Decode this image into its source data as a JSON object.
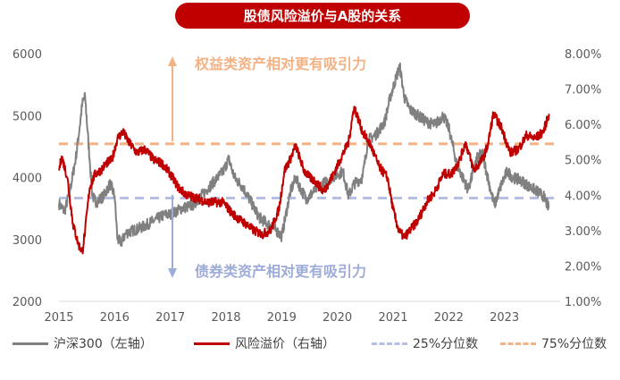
{
  "chart_data": {
    "type": "line",
    "title": "股债风险溢价与A股的关系",
    "x_ticks": [
      "2015",
      "2016",
      "2017",
      "2018",
      "2019",
      "2020",
      "2021",
      "2022",
      "2023"
    ],
    "y_left": {
      "ticks": [
        "2000",
        "3000",
        "4000",
        "5000",
        "6000"
      ],
      "range": [
        2000,
        6000
      ]
    },
    "y_right": {
      "ticks": [
        "1.00%",
        "2.00%",
        "3.00%",
        "4.00%",
        "5.00%",
        "6.00%",
        "7.00%",
        "8.00%"
      ],
      "range": [
        1.0,
        8.0
      ]
    },
    "x_range": [
      2015.0,
      2024.0
    ],
    "series": [
      {
        "name": "沪深300（左轴）",
        "axis": "left",
        "color": "#808080",
        "x": [
          2015.0,
          2015.1,
          2015.2,
          2015.3,
          2015.37,
          2015.42,
          2015.47,
          2015.55,
          2015.6,
          2015.67,
          2015.8,
          2015.92,
          2016.0,
          2016.05,
          2016.12,
          2016.2,
          2016.35,
          2016.5,
          2016.7,
          2016.9,
          2017.0,
          2017.2,
          2017.4,
          2017.6,
          2017.8,
          2017.95,
          2018.05,
          2018.15,
          2018.3,
          2018.45,
          2018.6,
          2018.75,
          2018.9,
          2019.0,
          2019.15,
          2019.25,
          2019.35,
          2019.45,
          2019.6,
          2019.75,
          2019.9,
          2020.0,
          2020.1,
          2020.2,
          2020.3,
          2020.45,
          2020.55,
          2020.7,
          2020.85,
          2020.95,
          2021.05,
          2021.12,
          2021.2,
          2021.3,
          2021.45,
          2021.6,
          2021.75,
          2021.9,
          2022.0,
          2022.15,
          2022.25,
          2022.35,
          2022.5,
          2022.6,
          2022.75,
          2022.82,
          2022.95,
          2023.05,
          2023.15,
          2023.3,
          2023.45,
          2023.55,
          2023.7,
          2023.8
        ],
        "values": [
          3580,
          3450,
          3800,
          4300,
          4800,
          5200,
          5300,
          4300,
          3700,
          3600,
          3700,
          3900,
          3700,
          3000,
          2950,
          3100,
          3150,
          3200,
          3300,
          3400,
          3400,
          3500,
          3550,
          3750,
          3950,
          4100,
          4300,
          4000,
          3850,
          3600,
          3350,
          3250,
          3150,
          3050,
          3750,
          4000,
          3800,
          3650,
          3800,
          3900,
          4000,
          4050,
          4100,
          3700,
          3900,
          4000,
          4600,
          4700,
          4900,
          5300,
          5600,
          5800,
          5300,
          5100,
          5000,
          4900,
          4850,
          5000,
          4800,
          4200,
          4000,
          3800,
          4300,
          4400,
          3800,
          3550,
          3900,
          4100,
          4000,
          3950,
          3850,
          3800,
          3700,
          3500
        ]
      },
      {
        "name": "风险溢价（右轴）",
        "axis": "right",
        "color": "#c00000",
        "x": [
          2015.0,
          2015.05,
          2015.15,
          2015.25,
          2015.35,
          2015.42,
          2015.47,
          2015.55,
          2015.65,
          2015.75,
          2015.85,
          2015.95,
          2016.05,
          2016.15,
          2016.25,
          2016.4,
          2016.55,
          2016.7,
          2016.85,
          2017.0,
          2017.15,
          2017.3,
          2017.5,
          2017.65,
          2017.8,
          2017.95,
          2018.1,
          2018.25,
          2018.35,
          2018.5,
          2018.65,
          2018.8,
          2018.95,
          2019.05,
          2019.15,
          2019.25,
          2019.4,
          2019.5,
          2019.6,
          2019.75,
          2019.9,
          2020.05,
          2020.2,
          2020.3,
          2020.45,
          2020.6,
          2020.75,
          2020.9,
          2021.0,
          2021.1,
          2021.2,
          2021.3,
          2021.45,
          2021.6,
          2021.75,
          2021.9,
          2022.05,
          2022.2,
          2022.3,
          2022.45,
          2022.6,
          2022.7,
          2022.8,
          2022.95,
          2023.1,
          2023.25,
          2023.4,
          2023.55,
          2023.7,
          2023.8
        ],
        "values": [
          4.7,
          5.1,
          4.5,
          3.2,
          2.6,
          2.4,
          3.0,
          4.2,
          4.6,
          4.7,
          4.9,
          5.0,
          5.6,
          5.8,
          5.5,
          5.2,
          5.3,
          5.0,
          4.9,
          4.6,
          4.2,
          4.0,
          3.9,
          3.8,
          3.8,
          3.8,
          3.5,
          3.3,
          3.2,
          3.0,
          2.9,
          3.0,
          3.6,
          4.7,
          5.0,
          5.4,
          4.7,
          4.5,
          4.4,
          4.1,
          4.5,
          5.0,
          5.5,
          6.5,
          5.8,
          5.4,
          4.8,
          4.5,
          3.6,
          3.0,
          2.8,
          3.0,
          3.3,
          3.8,
          4.1,
          4.6,
          4.6,
          5.0,
          5.5,
          4.7,
          5.0,
          5.4,
          6.3,
          5.9,
          5.2,
          5.3,
          5.7,
          5.6,
          5.8,
          6.3
        ]
      },
      {
        "name": "25%分位数",
        "axis": "right",
        "color": "#b4bfe3",
        "dash": true,
        "constant": 3.92
      },
      {
        "name": "75%分位数",
        "axis": "right",
        "color": "#f4b183",
        "dash": true,
        "constant": 5.45
      }
    ],
    "annotations": {
      "up": "权益类资产相对更有吸引力",
      "down": "债券类资产相对更有吸引力"
    }
  },
  "legend": {
    "hs300": "沪深300（左轴）",
    "risk": "风险溢价（右轴）",
    "p25": "25%分位数",
    "p75": "75%分位数"
  }
}
